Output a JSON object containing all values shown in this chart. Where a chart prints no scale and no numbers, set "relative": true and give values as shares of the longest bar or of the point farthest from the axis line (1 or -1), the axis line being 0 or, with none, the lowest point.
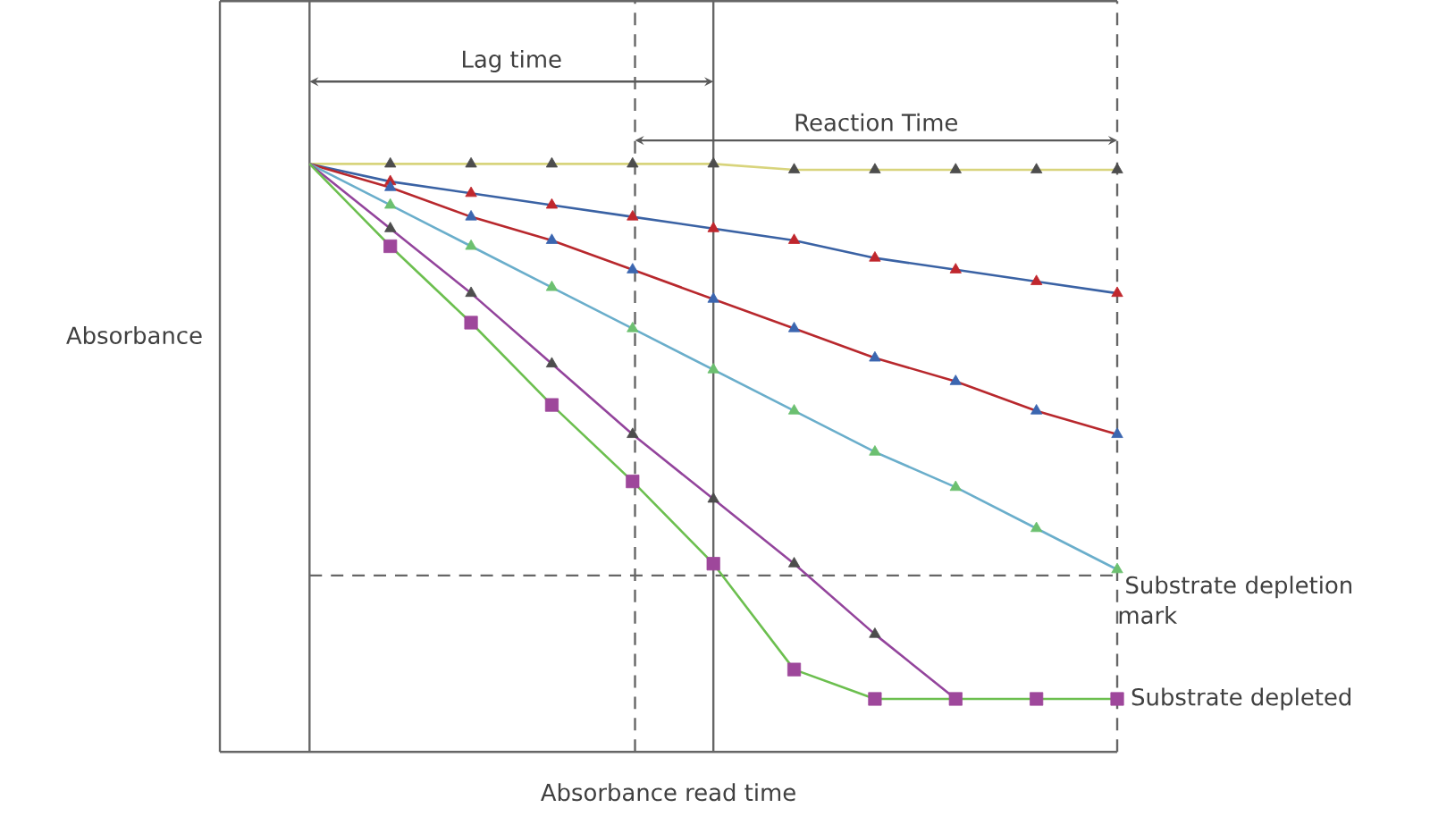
{
  "chart_data": {
    "type": "line",
    "relative": true,
    "xlabel": "Absorbance read time",
    "ylabel": "Absorbance",
    "categories": [
      null,
      null,
      null,
      null,
      null,
      null,
      null,
      null,
      null,
      null,
      null
    ],
    "series": [
      {
        "color": "#d8d47c",
        "colors": [
          "#4d4d4d",
          "#4d4d4d",
          "#4d4d4d",
          "#4d4d4d",
          "#4d4d4d",
          "#4d4d4d",
          "#4d4d4d",
          "#4d4d4d",
          "#4d4d4d",
          "#4d4d4d",
          "#4d4d4d"
        ],
        "marker": "triangle",
        "values": [
          1,
          1,
          1,
          1,
          1,
          1,
          0.99,
          0.99,
          0.99,
          0.99,
          0.99
        ]
      },
      {
        "color": "#3a62a4",
        "colors": [
          "#c0272d",
          "#c0272d",
          "#c0272d",
          "#c0272d",
          "#c0272d",
          "#c0272d",
          "#c0272d",
          "#c0272d",
          "#c0272d",
          "#c0272d",
          "#c0272d"
        ],
        "marker": "triangle",
        "values": [
          1,
          0.97,
          0.95,
          0.93,
          0.91,
          0.89,
          0.87,
          0.84,
          0.82,
          0.8,
          0.78
        ]
      },
      {
        "color": "#b8282d",
        "colors": [
          "#3b66b0",
          "#3b66b0",
          "#3b66b0",
          "#3b66b0",
          "#3b66b0",
          "#3b66b0",
          "#3b66b0",
          "#3b66b0",
          "#3b66b0",
          "#3b66b0",
          "#3b66b0"
        ],
        "marker": "triangle",
        "values": [
          1,
          0.96,
          0.91,
          0.87,
          0.82,
          0.77,
          0.72,
          0.67,
          0.63,
          0.58,
          0.54
        ]
      },
      {
        "color": "#6aaecb",
        "colors": [
          "#6cc070",
          "#6cc070",
          "#6cc070",
          "#6cc070",
          "#6cc070",
          "#6cc070",
          "#6cc070",
          "#6cc070",
          "#6cc070",
          "#6cc070",
          "#6cc070"
        ],
        "marker": "triangle",
        "values": [
          1,
          0.93,
          0.86,
          0.79,
          0.72,
          0.65,
          0.58,
          0.51,
          0.45,
          0.38,
          0.31
        ]
      },
      {
        "color": "#93449c",
        "colors": [
          "#4d4d4d",
          "#4d4d4d",
          "#4d4d4d",
          "#4d4d4d",
          "#4d4d4d",
          "#4d4d4d",
          "#4d4d4d",
          "#4d4d4d",
          null,
          null,
          null
        ],
        "marker": "triangle",
        "values": [
          1,
          0.89,
          0.78,
          0.66,
          0.54,
          0.43,
          0.32,
          0.2,
          0.09,
          null,
          null
        ]
      },
      {
        "color": "#6cbf4f",
        "colors": [
          "#9e479b",
          "#9e479b",
          "#9e479b",
          "#9e479b",
          "#9e479b",
          "#9e479b",
          "#9e479b",
          "#9e479b",
          "#9e479b",
          "#9e479b",
          "#9e479b"
        ],
        "marker": "square",
        "values": [
          1,
          0.86,
          0.73,
          0.59,
          0.46,
          0.32,
          0.14,
          0.09,
          0.09,
          0.09,
          0.09
        ]
      }
    ],
    "ref_lines": [
      {
        "axis": "y",
        "value": 0.3,
        "line_style": "dashed",
        "label": "Substrate depletion mark"
      }
    ],
    "annotations": [
      "Lag time",
      "Reaction Time",
      "Substrate depleted"
    ]
  }
}
